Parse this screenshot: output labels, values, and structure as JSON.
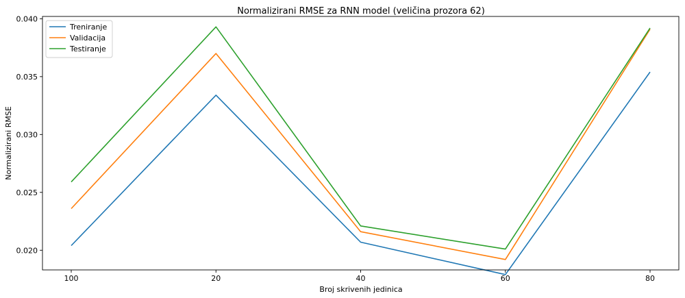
{
  "chart_data": {
    "type": "line",
    "title": "Normalizirani RMSE za RNN model (veličina prozora 62)",
    "xlabel": "Broj skrivenih jedinica",
    "ylabel": "Normalizirani RMSE",
    "categories": [
      "100",
      "20",
      "40",
      "60",
      "80"
    ],
    "ylim": [
      0.0183,
      0.0402
    ],
    "yticks": [
      "0.020",
      "0.025",
      "0.030",
      "0.035",
      "0.040"
    ],
    "ytick_values": [
      0.02,
      0.025,
      0.03,
      0.035,
      0.04
    ],
    "grid": false,
    "legend_position": "top-left",
    "series": [
      {
        "name": "Treniranje",
        "color": "#1f77b4",
        "values": [
          0.0204,
          0.0334,
          0.0207,
          0.0179,
          0.0354
        ]
      },
      {
        "name": "Validacija",
        "color": "#ff7f0e",
        "values": [
          0.0236,
          0.037,
          0.0216,
          0.0192,
          0.0391
        ]
      },
      {
        "name": "Testiranje",
        "color": "#2ca02c",
        "values": [
          0.0259,
          0.0393,
          0.0221,
          0.0201,
          0.0392
        ]
      }
    ]
  }
}
